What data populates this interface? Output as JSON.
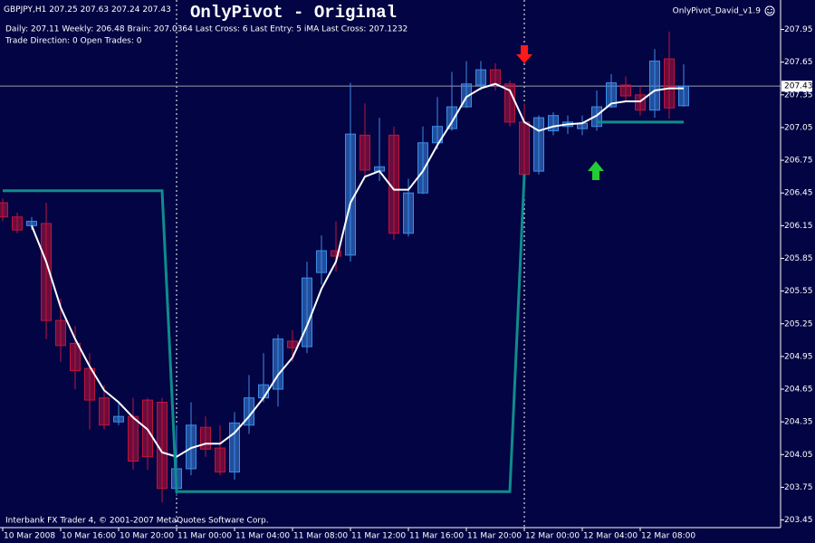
{
  "chart_data": {
    "type": "candlestick",
    "title": "OnlyPivot - Original",
    "symbol": "GBPJPY,H1",
    "info": [
      "Daily: 207.11 Weekly: 206.48 Brain: 207.0364 Last Cross: 6 Last Entry: 5 iMA Last Cross: 207.1232",
      "Trade Direction: 0 Open Trades: 0"
    ],
    "indicator_label": "OnlyPivot_David_v1.9",
    "footer": "Interbank FX Trader 4, © 2001-2007 MetaQuotes Software Corp.",
    "categories": [
      "10 Mar 2008",
      null,
      null,
      null,
      "10 Mar 16:00",
      null,
      null,
      null,
      "10 Mar 20:00",
      null,
      null,
      null,
      "11 Mar 00:00",
      null,
      null,
      null,
      "11 Mar 04:00",
      null,
      null,
      null,
      "11 Mar 08:00",
      null,
      null,
      null,
      "11 Mar 12:00",
      null,
      null,
      null,
      "11 Mar 16:00",
      null,
      null,
      null,
      "11 Mar 20:00",
      null,
      null,
      null,
      "12 Mar 00:00",
      null,
      null,
      null,
      "12 Mar 04:00",
      null,
      null,
      null,
      "12 Mar 08:00",
      null,
      null,
      null
    ],
    "open": [
      206.36,
      206.23,
      206.15,
      206.17,
      205.28,
      205.07,
      204.84,
      204.57,
      204.35,
      204.4,
      204.55,
      204.53,
      203.74,
      203.92,
      204.3,
      204.11,
      203.89,
      204.32,
      204.57,
      204.65,
      205.09,
      205.04,
      205.72,
      205.92,
      205.88,
      206.98,
      206.65,
      206.98,
      206.08,
      206.45,
      206.91,
      207.04,
      207.24,
      207.44,
      207.58,
      207.45,
      207.1,
      206.65,
      207.02,
      207.06,
      207.04,
      207.06,
      207.24,
      207.44,
      207.35,
      207.21,
      207.68,
      207.25
    ],
    "high": [
      206.4,
      206.27,
      206.23,
      206.36,
      205.48,
      205.23,
      204.98,
      204.69,
      204.53,
      204.57,
      204.57,
      204.57,
      204.32,
      204.53,
      204.4,
      204.32,
      204.44,
      204.78,
      204.98,
      205.15,
      205.19,
      205.82,
      206.06,
      206.19,
      207.46,
      207.27,
      207.14,
      207.06,
      206.58,
      207.06,
      207.33,
      207.56,
      207.66,
      207.66,
      207.64,
      207.48,
      207.27,
      207.16,
      207.19,
      207.16,
      207.16,
      207.39,
      207.54,
      207.52,
      207.44,
      207.77,
      207.93,
      207.63
    ],
    "low": [
      206.19,
      206.08,
      206.11,
      205.11,
      204.9,
      204.65,
      204.28,
      204.28,
      204.32,
      203.91,
      203.91,
      203.61,
      203.67,
      203.86,
      204.03,
      203.86,
      203.82,
      204.24,
      204.53,
      204.49,
      204.9,
      204.98,
      205.61,
      205.73,
      205.82,
      206.6,
      206.56,
      206.02,
      206.05,
      206.44,
      206.85,
      207.02,
      207.23,
      207.39,
      207.39,
      207.06,
      206.6,
      206.62,
      206.98,
      206.99,
      206.98,
      207.02,
      207.23,
      207.29,
      207.16,
      207.14,
      207.13,
      207.24
    ],
    "close": [
      206.23,
      206.11,
      206.19,
      205.28,
      205.05,
      204.82,
      204.55,
      204.32,
      204.4,
      203.99,
      204.03,
      203.74,
      203.92,
      204.32,
      204.1,
      203.89,
      204.34,
      204.57,
      204.69,
      205.11,
      205.03,
      205.67,
      205.92,
      205.87,
      206.99,
      206.66,
      206.69,
      206.08,
      206.45,
      206.91,
      207.06,
      207.24,
      207.45,
      207.58,
      207.45,
      207.1,
      206.62,
      207.14,
      207.16,
      207.1,
      207.09,
      207.24,
      207.46,
      207.34,
      207.21,
      207.66,
      207.23,
      207.43
    ],
    "lines": [
      {
        "color": "#ffffff",
        "values": [
          null,
          null,
          206.15,
          205.82,
          205.4,
          205.11,
          204.86,
          204.64,
          204.53,
          204.39,
          204.28,
          204.07,
          204.03,
          204.11,
          204.15,
          204.15,
          204.25,
          204.4,
          204.57,
          204.78,
          204.94,
          205.23,
          205.57,
          205.82,
          206.36,
          206.6,
          206.65,
          206.48,
          206.48,
          206.65,
          206.89,
          207.1,
          207.33,
          207.41,
          207.45,
          207.39,
          207.1,
          207.02,
          207.06,
          207.08,
          207.09,
          207.16,
          207.27,
          207.29,
          207.29,
          207.39,
          207.41,
          207.41
        ]
      },
      {
        "color": "#0f8c8c",
        "values": [
          206.47,
          206.47,
          206.47,
          206.47,
          206.47,
          206.47,
          206.47,
          206.47,
          206.47,
          206.47,
          206.47,
          206.47,
          203.71,
          203.71,
          203.71,
          203.71,
          203.71,
          203.71,
          203.71,
          203.71,
          203.71,
          203.71,
          203.71,
          203.71,
          203.71,
          203.71,
          203.71,
          203.71,
          203.71,
          203.71,
          203.71,
          203.71,
          203.71,
          203.71,
          203.71,
          203.71,
          206.62,
          null,
          null,
          null,
          null,
          207.1,
          207.1,
          207.1,
          207.1,
          207.1,
          207.1,
          207.1
        ]
      }
    ],
    "current_price": 207.43,
    "up_color": "#3c8ce6",
    "down_color": "#c0143a",
    "ylim": [
      203.38,
      208.22
    ],
    "yticks": [
      207.95,
      207.65,
      207.35,
      207.05,
      206.75,
      206.45,
      206.15,
      205.85,
      205.55,
      205.25,
      204.95,
      204.65,
      204.35,
      204.05,
      203.75,
      203.45
    ]
  }
}
